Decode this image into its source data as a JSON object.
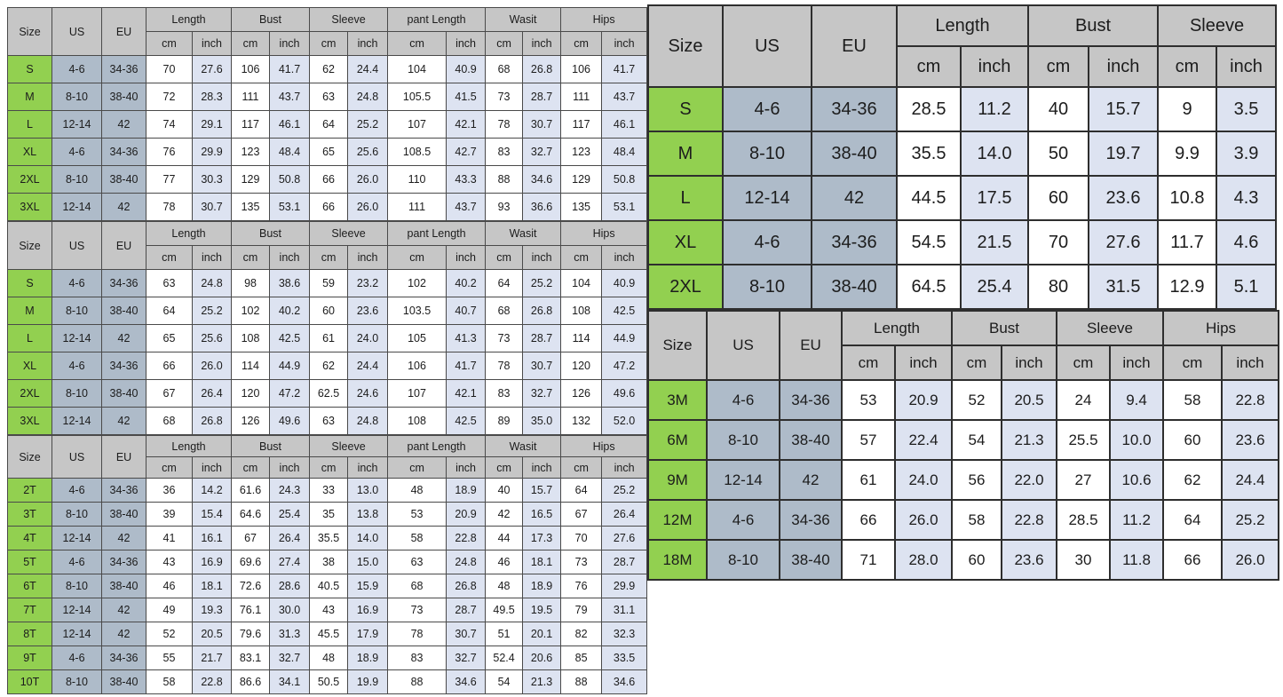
{
  "colors": {
    "header_bg": "#c6c6c6",
    "size_col_bg": "#92d050",
    "us_eu_col_bg": "#aebbc9",
    "cm_col_bg": "#ffffff",
    "inch_col_bg": "#dde3f1",
    "text": "#1c1c1c"
  },
  "tables": [
    {
      "name": "size-chart-adult-set-1",
      "header": {
        "size": "Size",
        "us": "US",
        "eu": "EU"
      },
      "groups": [
        "Length",
        "Bust",
        "Sleeve",
        "pant Length",
        "Wasit",
        "Hips"
      ],
      "units": [
        "cm",
        "inch"
      ],
      "rows": [
        {
          "size": "S",
          "us": "4-6",
          "eu": "34-36",
          "values": [
            "70",
            "27.6",
            "106",
            "41.7",
            "62",
            "24.4",
            "104",
            "40.9",
            "68",
            "26.8",
            "106",
            "41.7"
          ]
        },
        {
          "size": "M",
          "us": "8-10",
          "eu": "38-40",
          "values": [
            "72",
            "28.3",
            "111",
            "43.7",
            "63",
            "24.8",
            "105.5",
            "41.5",
            "73",
            "28.7",
            "111",
            "43.7"
          ]
        },
        {
          "size": "L",
          "us": "12-14",
          "eu": "42",
          "values": [
            "74",
            "29.1",
            "117",
            "46.1",
            "64",
            "25.2",
            "107",
            "42.1",
            "78",
            "30.7",
            "117",
            "46.1"
          ]
        },
        {
          "size": "XL",
          "us": "4-6",
          "eu": "34-36",
          "values": [
            "76",
            "29.9",
            "123",
            "48.4",
            "65",
            "25.6",
            "108.5",
            "42.7",
            "83",
            "32.7",
            "123",
            "48.4"
          ]
        },
        {
          "size": "2XL",
          "us": "8-10",
          "eu": "38-40",
          "values": [
            "77",
            "30.3",
            "129",
            "50.8",
            "66",
            "26.0",
            "110",
            "43.3",
            "88",
            "34.6",
            "129",
            "50.8"
          ]
        },
        {
          "size": "3XL",
          "us": "12-14",
          "eu": "42",
          "values": [
            "78",
            "30.7",
            "135",
            "53.1",
            "66",
            "26.0",
            "111",
            "43.7",
            "93",
            "36.6",
            "135",
            "53.1"
          ]
        }
      ]
    },
    {
      "name": "size-chart-adult-set-2",
      "header": {
        "size": "Size",
        "us": "US",
        "eu": "EU"
      },
      "groups": [
        "Length",
        "Bust",
        "Sleeve",
        "pant Length",
        "Wasit",
        "Hips"
      ],
      "units": [
        "cm",
        "inch"
      ],
      "rows": [
        {
          "size": "S",
          "us": "4-6",
          "eu": "34-36",
          "values": [
            "63",
            "24.8",
            "98",
            "38.6",
            "59",
            "23.2",
            "102",
            "40.2",
            "64",
            "25.2",
            "104",
            "40.9"
          ]
        },
        {
          "size": "M",
          "us": "8-10",
          "eu": "38-40",
          "values": [
            "64",
            "25.2",
            "102",
            "40.2",
            "60",
            "23.6",
            "103.5",
            "40.7",
            "68",
            "26.8",
            "108",
            "42.5"
          ]
        },
        {
          "size": "L",
          "us": "12-14",
          "eu": "42",
          "values": [
            "65",
            "25.6",
            "108",
            "42.5",
            "61",
            "24.0",
            "105",
            "41.3",
            "73",
            "28.7",
            "114",
            "44.9"
          ]
        },
        {
          "size": "XL",
          "us": "4-6",
          "eu": "34-36",
          "values": [
            "66",
            "26.0",
            "114",
            "44.9",
            "62",
            "24.4",
            "106",
            "41.7",
            "78",
            "30.7",
            "120",
            "47.2"
          ]
        },
        {
          "size": "2XL",
          "us": "8-10",
          "eu": "38-40",
          "values": [
            "67",
            "26.4",
            "120",
            "47.2",
            "62.5",
            "24.6",
            "107",
            "42.1",
            "83",
            "32.7",
            "126",
            "49.6"
          ]
        },
        {
          "size": "3XL",
          "us": "12-14",
          "eu": "42",
          "values": [
            "68",
            "26.8",
            "126",
            "49.6",
            "63",
            "24.8",
            "108",
            "42.5",
            "89",
            "35.0",
            "132",
            "52.0"
          ]
        }
      ]
    },
    {
      "name": "size-chart-toddler",
      "header": {
        "size": "Size",
        "us": "US",
        "eu": "EU"
      },
      "groups": [
        "Length",
        "Bust",
        "Sleeve",
        "pant Length",
        "Wasit",
        "Hips"
      ],
      "units": [
        "cm",
        "inch"
      ],
      "rows": [
        {
          "size": "2T",
          "us": "4-6",
          "eu": "34-36",
          "values": [
            "36",
            "14.2",
            "61.6",
            "24.3",
            "33",
            "13.0",
            "48",
            "18.9",
            "40",
            "15.7",
            "64",
            "25.2"
          ]
        },
        {
          "size": "3T",
          "us": "8-10",
          "eu": "38-40",
          "values": [
            "39",
            "15.4",
            "64.6",
            "25.4",
            "35",
            "13.8",
            "53",
            "20.9",
            "42",
            "16.5",
            "67",
            "26.4"
          ]
        },
        {
          "size": "4T",
          "us": "12-14",
          "eu": "42",
          "values": [
            "41",
            "16.1",
            "67",
            "26.4",
            "35.5",
            "14.0",
            "58",
            "22.8",
            "44",
            "17.3",
            "70",
            "27.6"
          ]
        },
        {
          "size": "5T",
          "us": "4-6",
          "eu": "34-36",
          "values": [
            "43",
            "16.9",
            "69.6",
            "27.4",
            "38",
            "15.0",
            "63",
            "24.8",
            "46",
            "18.1",
            "73",
            "28.7"
          ]
        },
        {
          "size": "6T",
          "us": "8-10",
          "eu": "38-40",
          "values": [
            "46",
            "18.1",
            "72.6",
            "28.6",
            "40.5",
            "15.9",
            "68",
            "26.8",
            "48",
            "18.9",
            "76",
            "29.9"
          ]
        },
        {
          "size": "7T",
          "us": "12-14",
          "eu": "42",
          "values": [
            "49",
            "19.3",
            "76.1",
            "30.0",
            "43",
            "16.9",
            "73",
            "28.7",
            "49.5",
            "19.5",
            "79",
            "31.1"
          ]
        },
        {
          "size": "8T",
          "us": "12-14",
          "eu": "42",
          "values": [
            "52",
            "20.5",
            "79.6",
            "31.3",
            "45.5",
            "17.9",
            "78",
            "30.7",
            "51",
            "20.1",
            "82",
            "32.3"
          ]
        },
        {
          "size": "9T",
          "us": "4-6",
          "eu": "34-36",
          "values": [
            "55",
            "21.7",
            "83.1",
            "32.7",
            "48",
            "18.9",
            "83",
            "32.7",
            "52.4",
            "20.6",
            "85",
            "33.5"
          ]
        },
        {
          "size": "10T",
          "us": "8-10",
          "eu": "38-40",
          "values": [
            "58",
            "22.8",
            "86.6",
            "34.1",
            "50.5",
            "19.9",
            "88",
            "34.6",
            "54",
            "21.3",
            "88",
            "34.6"
          ]
        }
      ]
    },
    {
      "name": "size-chart-adult-top",
      "header": {
        "size": "Size",
        "us": "US",
        "eu": "EU"
      },
      "groups": [
        "Length",
        "Bust",
        "Sleeve"
      ],
      "units": [
        "cm",
        "inch"
      ],
      "rows": [
        {
          "size": "S",
          "us": "4-6",
          "eu": "34-36",
          "values": [
            "28.5",
            "11.2",
            "40",
            "15.7",
            "9",
            "3.5"
          ]
        },
        {
          "size": "M",
          "us": "8-10",
          "eu": "38-40",
          "values": [
            "35.5",
            "14.0",
            "50",
            "19.7",
            "9.9",
            "3.9"
          ]
        },
        {
          "size": "L",
          "us": "12-14",
          "eu": "42",
          "values": [
            "44.5",
            "17.5",
            "60",
            "23.6",
            "10.8",
            "4.3"
          ]
        },
        {
          "size": "XL",
          "us": "4-6",
          "eu": "34-36",
          "values": [
            "54.5",
            "21.5",
            "70",
            "27.6",
            "11.7",
            "4.6"
          ]
        },
        {
          "size": "2XL",
          "us": "8-10",
          "eu": "38-40",
          "values": [
            "64.5",
            "25.4",
            "80",
            "31.5",
            "12.9",
            "5.1"
          ]
        }
      ]
    },
    {
      "name": "size-chart-baby-months",
      "header": {
        "size": "Size",
        "us": "US",
        "eu": "EU"
      },
      "groups": [
        "Length",
        "Bust",
        "Sleeve",
        "Hips"
      ],
      "units": [
        "cm",
        "inch"
      ],
      "rows": [
        {
          "size": "3M",
          "us": "4-6",
          "eu": "34-36",
          "values": [
            "53",
            "20.9",
            "52",
            "20.5",
            "24",
            "9.4",
            "58",
            "22.8"
          ]
        },
        {
          "size": "6M",
          "us": "8-10",
          "eu": "38-40",
          "values": [
            "57",
            "22.4",
            "54",
            "21.3",
            "25.5",
            "10.0",
            "60",
            "23.6"
          ]
        },
        {
          "size": "9M",
          "us": "12-14",
          "eu": "42",
          "values": [
            "61",
            "24.0",
            "56",
            "22.0",
            "27",
            "10.6",
            "62",
            "24.4"
          ]
        },
        {
          "size": "12M",
          "us": "4-6",
          "eu": "34-36",
          "values": [
            "66",
            "26.0",
            "58",
            "22.8",
            "28.5",
            "11.2",
            "64",
            "25.2"
          ]
        },
        {
          "size": "18M",
          "us": "8-10",
          "eu": "38-40",
          "values": [
            "71",
            "28.0",
            "60",
            "23.6",
            "30",
            "11.8",
            "66",
            "26.0"
          ]
        }
      ]
    }
  ]
}
